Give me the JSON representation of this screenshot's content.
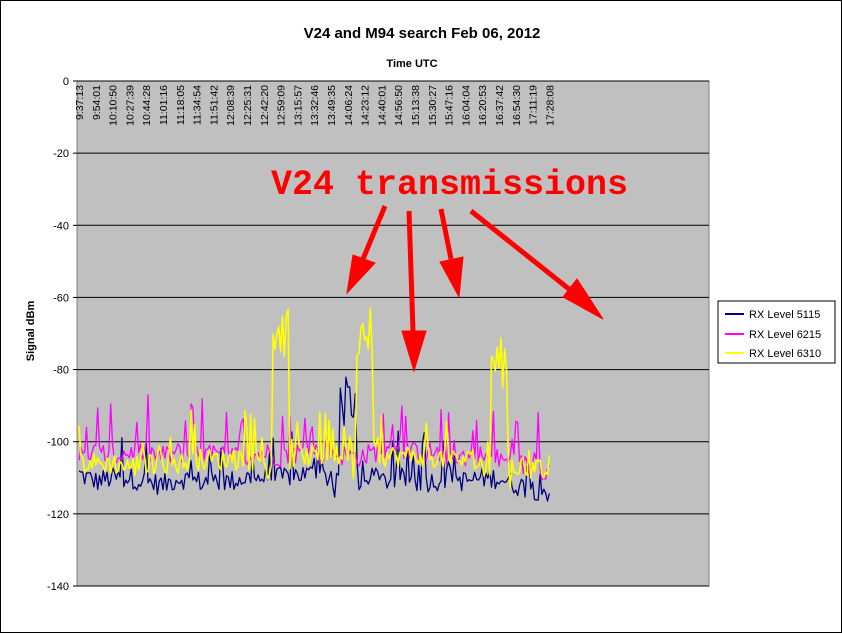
{
  "chart_data": {
    "type": "line",
    "title": "V24 and M94 search Feb 06, 2012",
    "subtitle": "Time UTC",
    "ylabel": "Signal dBm",
    "ylim": [
      -140,
      0
    ],
    "yticks": [
      0,
      -20,
      -40,
      -60,
      -80,
      -100,
      -120,
      -140
    ],
    "grid": true,
    "legend_position": "right",
    "x_categories": [
      "9:37:13",
      "9:54:01",
      "10:10:50",
      "10:27:39",
      "10:44:28",
      "11:01:16",
      "11:18:05",
      "11:34:54",
      "11:51:42",
      "12:08:39",
      "12:25:31",
      "12:42:20",
      "12:59:09",
      "13:15:57",
      "13:32:46",
      "13:49:35",
      "14:06:24",
      "14:23:12",
      "14:40:01",
      "14:56:50",
      "15:13:38",
      "15:30:27",
      "15:47:16",
      "16:04:04",
      "16:20:53",
      "16:37:42",
      "16:54:30",
      "17:11:19",
      "17:28:08"
    ],
    "series": [
      {
        "name": "RX Level 5115",
        "color": "#000080",
        "values": [
          -109,
          -111,
          -110,
          -110,
          -111,
          -112,
          -110,
          -111,
          -111,
          -111,
          -110,
          -110,
          -110,
          -109,
          -109,
          -110,
          -89,
          -112,
          -111,
          -110,
          -111,
          -111,
          -110,
          -111,
          -110,
          -110,
          -112,
          -113,
          -114
        ]
      },
      {
        "name": "RX Level 6215",
        "color": "#ff00ff",
        "values": [
          -104,
          -103,
          -104,
          -103,
          -103,
          -104,
          -103,
          -103,
          -104,
          -104,
          -104,
          -103,
          -104,
          -103,
          -103,
          -103,
          -104,
          -104,
          -102,
          -103,
          -103,
          -103,
          -104,
          -104,
          -104,
          -105,
          -106,
          -107,
          -108
        ]
      },
      {
        "name": "RX Level 6310",
        "color": "#ffff00",
        "values": [
          -106,
          -106,
          -106,
          -107,
          -106,
          -106,
          -106,
          -105,
          -105,
          -105,
          -105,
          -105,
          -70,
          -104,
          -104,
          -104,
          -104,
          -70,
          -104,
          -104,
          -104,
          -104,
          -105,
          -105,
          -106,
          -78,
          -107,
          -108,
          -108
        ]
      }
    ],
    "annotations": [
      {
        "text": "V24 transmissions",
        "color": "#ff0000"
      }
    ]
  }
}
